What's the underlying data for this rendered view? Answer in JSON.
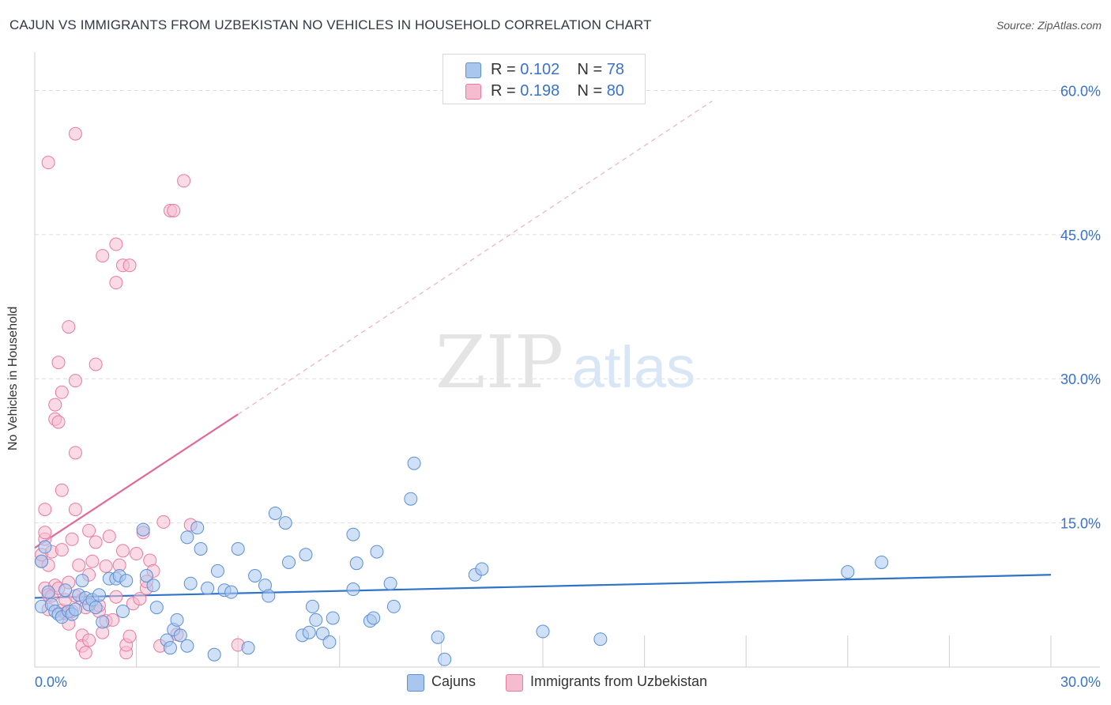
{
  "title": "CAJUN VS IMMIGRANTS FROM UZBEKISTAN NO VEHICLES IN HOUSEHOLD CORRELATION CHART",
  "source": "Source: ZipAtlas.com",
  "watermark": {
    "zip": "ZIP",
    "atlas": "atlas"
  },
  "legend_top": {
    "rows": [
      {
        "r_label": "R =",
        "r_value": "0.102",
        "n_label": "N =",
        "n_value": "78"
      },
      {
        "r_label": "R =",
        "r_value": "0.198",
        "n_label": "N =",
        "n_value": "80"
      }
    ]
  },
  "legend_bottom": {
    "items": [
      {
        "label": "Cajuns"
      },
      {
        "label": "Immigrants from Uzbekistan"
      }
    ]
  },
  "colors": {
    "blue_fill": "#a9c6ef",
    "blue_stroke": "#5b8fd6",
    "blue_line": "#2f73c9",
    "pink_fill": "#f5bcd0",
    "pink_stroke": "#e87ba0",
    "pink_line": "#e0699a",
    "grid": "#dddddd",
    "tick_text": "#3a72c9"
  },
  "chart_data": {
    "type": "scatter",
    "title": "CAJUN VS IMMIGRANTS FROM UZBEKISTAN NO VEHICLES IN HOUSEHOLD CORRELATION CHART",
    "xlabel": "",
    "ylabel": "No Vehicles in Household",
    "xlim": [
      0,
      30
    ],
    "ylim": [
      0,
      63
    ],
    "x_tick_labels": [
      {
        "value": 0,
        "label": "0.0%"
      },
      {
        "value": 30,
        "label": "30.0%"
      }
    ],
    "y_tick_labels": [
      {
        "value": 15,
        "label": "15.0%"
      },
      {
        "value": 30,
        "label": "30.0%"
      },
      {
        "value": 45,
        "label": "45.0%"
      },
      {
        "value": 60,
        "label": "60.0%"
      }
    ],
    "x_gridlines": [
      0,
      3,
      6,
      9,
      12,
      15,
      18,
      21,
      24,
      27,
      30
    ],
    "y_gridlines": [
      15,
      30,
      45,
      60
    ],
    "grid": true,
    "legend_position": "top-center",
    "series": [
      {
        "name": "Cajuns",
        "R": 0.102,
        "N": 78,
        "color": "blue",
        "trend": {
          "x": [
            0,
            30
          ],
          "y": [
            7.2,
            9.6
          ],
          "style": "solid"
        },
        "points": [
          [
            0.2,
            6.3
          ],
          [
            0.2,
            11.0
          ],
          [
            0.3,
            12.5
          ],
          [
            0.4,
            7.8
          ],
          [
            0.5,
            6.5
          ],
          [
            0.6,
            5.8
          ],
          [
            0.7,
            5.5
          ],
          [
            0.8,
            5.2
          ],
          [
            0.9,
            8.0
          ],
          [
            1.0,
            5.8
          ],
          [
            1.1,
            5.5
          ],
          [
            1.2,
            6.0
          ],
          [
            1.3,
            7.5
          ],
          [
            1.4,
            9.0
          ],
          [
            1.5,
            7.2
          ],
          [
            1.6,
            6.5
          ],
          [
            1.7,
            7.0
          ],
          [
            1.8,
            6.2
          ],
          [
            1.9,
            7.5
          ],
          [
            2.0,
            4.7
          ],
          [
            2.2,
            9.2
          ],
          [
            2.4,
            9.2
          ],
          [
            2.5,
            9.5
          ],
          [
            2.6,
            5.8
          ],
          [
            2.7,
            9.0
          ],
          [
            3.2,
            14.3
          ],
          [
            3.3,
            9.5
          ],
          [
            3.5,
            8.5
          ],
          [
            3.6,
            6.2
          ],
          [
            3.9,
            2.8
          ],
          [
            4.0,
            2.0
          ],
          [
            4.1,
            3.9
          ],
          [
            4.2,
            4.9
          ],
          [
            4.3,
            3.3
          ],
          [
            4.5,
            13.5
          ],
          [
            4.6,
            8.7
          ],
          [
            4.8,
            14.5
          ],
          [
            4.9,
            12.3
          ],
          [
            5.1,
            8.2
          ],
          [
            5.3,
            1.3
          ],
          [
            5.4,
            10.0
          ],
          [
            5.6,
            8.0
          ],
          [
            5.8,
            7.8
          ],
          [
            6.0,
            12.3
          ],
          [
            6.5,
            9.5
          ],
          [
            6.8,
            8.5
          ],
          [
            6.9,
            7.4
          ],
          [
            7.1,
            16.0
          ],
          [
            7.4,
            15.0
          ],
          [
            7.5,
            10.9
          ],
          [
            7.9,
            3.3
          ],
          [
            8.0,
            11.7
          ],
          [
            8.1,
            3.6
          ],
          [
            8.2,
            6.3
          ],
          [
            8.3,
            4.9
          ],
          [
            8.5,
            3.5
          ],
          [
            8.7,
            2.6
          ],
          [
            8.8,
            5.1
          ],
          [
            9.4,
            13.8
          ],
          [
            9.5,
            10.8
          ],
          [
            9.4,
            8.1
          ],
          [
            9.9,
            4.8
          ],
          [
            10.0,
            5.1
          ],
          [
            10.1,
            12.0
          ],
          [
            10.5,
            8.7
          ],
          [
            10.6,
            6.3
          ],
          [
            11.1,
            17.5
          ],
          [
            11.2,
            21.2
          ],
          [
            11.9,
            3.1
          ],
          [
            12.1,
            0.8
          ],
          [
            13.0,
            9.6
          ],
          [
            13.2,
            10.2
          ],
          [
            15.0,
            3.7
          ],
          [
            16.7,
            2.9
          ],
          [
            24.0,
            9.9
          ],
          [
            25.0,
            10.9
          ],
          [
            6.3,
            2.0
          ],
          [
            4.5,
            2.2
          ]
        ]
      },
      {
        "name": "Immigrants from Uzbekistan",
        "R": 0.198,
        "N": 80,
        "color": "pink",
        "trend": {
          "x": [
            0,
            6
          ],
          "y": [
            12.4,
            26.3
          ],
          "style": "solid"
        },
        "trend_extension": {
          "x": [
            6,
            20
          ],
          "y": [
            26.3,
            58.9
          ],
          "style": "dashed"
        },
        "points": [
          [
            0.2,
            11.0
          ],
          [
            0.2,
            11.7
          ],
          [
            0.3,
            13.3
          ],
          [
            0.3,
            16.4
          ],
          [
            0.3,
            8.2
          ],
          [
            0.4,
            7.5
          ],
          [
            0.4,
            6.0
          ],
          [
            0.4,
            10.6
          ],
          [
            0.5,
            7.4
          ],
          [
            0.6,
            8.5
          ],
          [
            0.5,
            12.0
          ],
          [
            0.7,
            8.2
          ],
          [
            0.8,
            5.9
          ],
          [
            0.8,
            18.4
          ],
          [
            0.8,
            12.2
          ],
          [
            0.9,
            7.0
          ],
          [
            0.9,
            5.6
          ],
          [
            1.0,
            8.8
          ],
          [
            1.1,
            13.3
          ],
          [
            1.1,
            5.8
          ],
          [
            1.2,
            16.4
          ],
          [
            1.2,
            7.4
          ],
          [
            1.3,
            10.6
          ],
          [
            1.4,
            3.3
          ],
          [
            1.4,
            2.2
          ],
          [
            1.4,
            7.0
          ],
          [
            1.5,
            6.2
          ],
          [
            1.5,
            1.5
          ],
          [
            1.6,
            2.8
          ],
          [
            1.6,
            9.6
          ],
          [
            1.7,
            11.0
          ],
          [
            1.8,
            13.0
          ],
          [
            1.9,
            5.8
          ],
          [
            1.9,
            6.4
          ],
          [
            2.0,
            3.6
          ],
          [
            2.1,
            4.8
          ],
          [
            2.2,
            13.6
          ],
          [
            2.3,
            4.9
          ],
          [
            2.4,
            7.3
          ],
          [
            2.5,
            10.6
          ],
          [
            2.6,
            12.1
          ],
          [
            2.7,
            1.5
          ],
          [
            2.7,
            2.3
          ],
          [
            2.8,
            3.2
          ],
          [
            2.9,
            6.6
          ],
          [
            3.0,
            11.8
          ],
          [
            3.1,
            7.1
          ],
          [
            3.2,
            14.0
          ],
          [
            3.3,
            8.2
          ],
          [
            3.4,
            11.1
          ],
          [
            3.5,
            10.0
          ],
          [
            3.7,
            2.2
          ],
          [
            3.8,
            15.1
          ],
          [
            4.2,
            3.4
          ],
          [
            4.6,
            14.8
          ],
          [
            6.0,
            2.3
          ],
          [
            0.4,
            52.5
          ],
          [
            1.2,
            55.5
          ],
          [
            4.4,
            50.6
          ],
          [
            4.0,
            47.5
          ],
          [
            4.1,
            47.5
          ],
          [
            2.4,
            44.0
          ],
          [
            2.0,
            42.8
          ],
          [
            2.6,
            41.8
          ],
          [
            2.8,
            41.8
          ],
          [
            2.4,
            40.0
          ],
          [
            1.0,
            35.4
          ],
          [
            1.8,
            31.5
          ],
          [
            0.7,
            31.7
          ],
          [
            1.2,
            29.8
          ],
          [
            0.8,
            28.6
          ],
          [
            0.6,
            27.3
          ],
          [
            0.6,
            25.8
          ],
          [
            0.7,
            25.5
          ],
          [
            1.2,
            22.3
          ],
          [
            0.3,
            14.0
          ],
          [
            1.6,
            14.2
          ],
          [
            2.1,
            10.5
          ],
          [
            3.3,
            8.9
          ],
          [
            1.0,
            4.5
          ]
        ]
      }
    ]
  }
}
